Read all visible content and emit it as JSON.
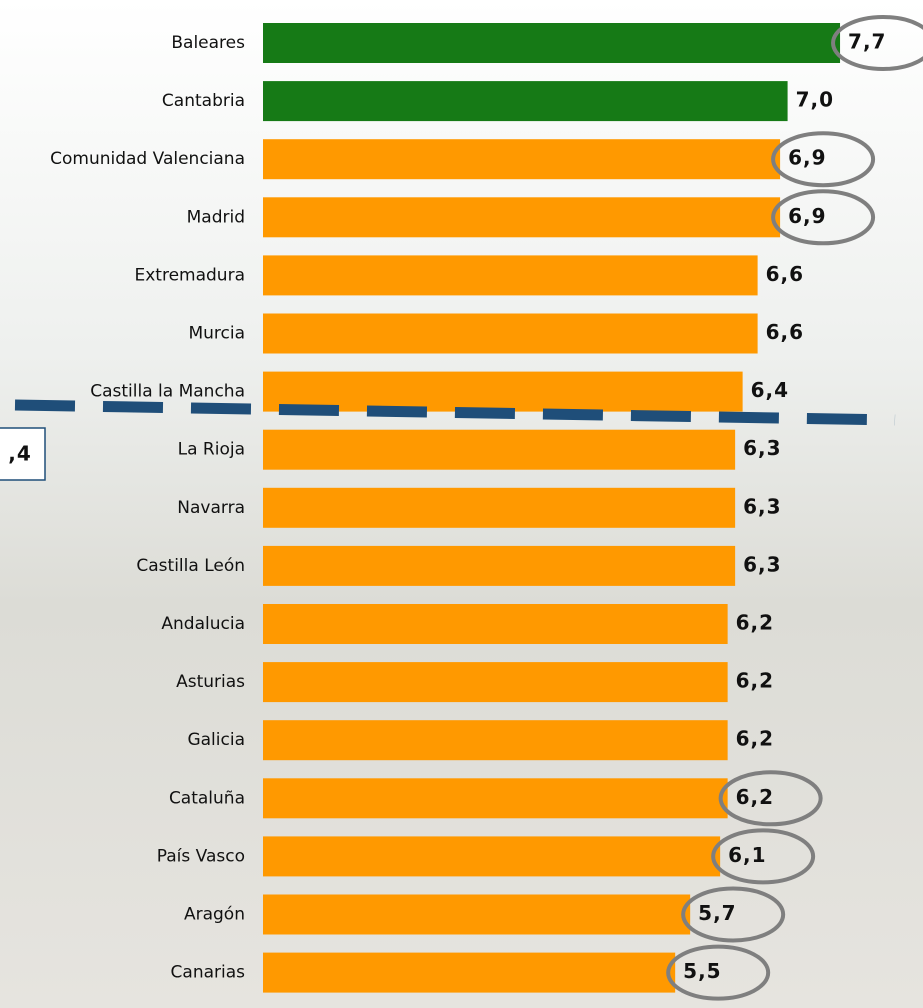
{
  "chart_data": {
    "type": "hbar",
    "categories": [
      "Baleares",
      "Cantabria",
      "Comunidad Valenciana",
      "Madrid",
      "Extremadura",
      "Murcia",
      "Castilla la Mancha",
      "La Rioja",
      "Navarra",
      "Castilla León",
      "Andalucia",
      "Asturias",
      "Galicia",
      "Cataluña",
      "País Vasco",
      "Aragón",
      "Canarias"
    ],
    "values": [
      7.7,
      7.0,
      6.9,
      6.9,
      6.6,
      6.6,
      6.4,
      6.3,
      6.3,
      6.3,
      6.2,
      6.2,
      6.2,
      6.2,
      6.1,
      5.7,
      5.5
    ],
    "value_labels": [
      "7,7",
      "7,0",
      "6,9",
      "6,9",
      "6,6",
      "6,6",
      "6,4",
      "6,3",
      "6,3",
      "6,3",
      "6,2",
      "6,2",
      "6,2",
      "6,2",
      "6,1",
      "5,7",
      "5,5"
    ],
    "colors": [
      "#167a16",
      "#167a16",
      "#ff9900",
      "#ff9900",
      "#ff9900",
      "#ff9900",
      "#ff9900",
      "#ff9900",
      "#ff9900",
      "#ff9900",
      "#ff9900",
      "#ff9900",
      "#ff9900",
      "#ff9900",
      "#ff9900",
      "#ff9900",
      "#ff9900"
    ],
    "highlight": [
      true,
      false,
      true,
      true,
      false,
      false,
      false,
      false,
      false,
      false,
      false,
      false,
      false,
      true,
      true,
      true,
      true
    ],
    "xlim": [
      0,
      8.5
    ],
    "annotation": ",4"
  }
}
